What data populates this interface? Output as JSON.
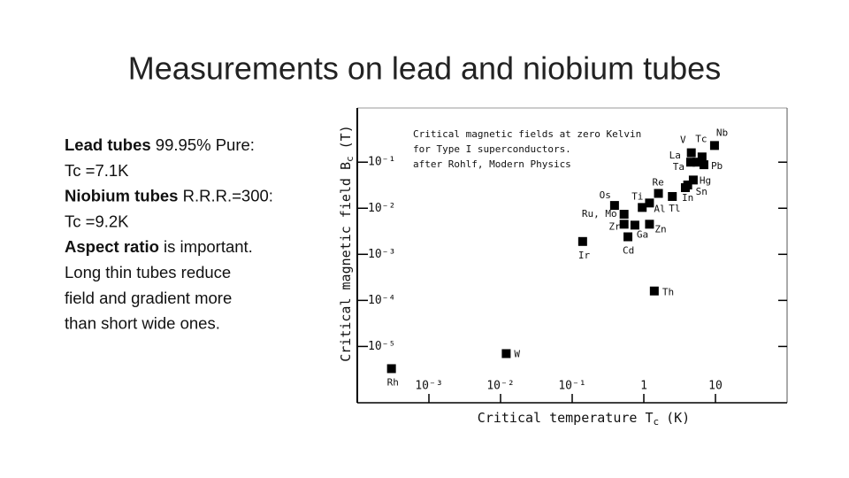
{
  "slide": {
    "title": "Measurements on lead and niobium tubes",
    "body": [
      [
        {
          "text": "Lead tubes",
          "bold": true
        },
        {
          "text": " 99.95% Pure:",
          "bold": false
        }
      ],
      [
        {
          "text": "Tc =7.1K",
          "bold": false
        }
      ],
      [
        {
          "text": "Niobium tubes",
          "bold": true
        },
        {
          "text": " R.R.R.=300:",
          "bold": false
        }
      ],
      [
        {
          "text": "Tc =9.2K",
          "bold": false
        }
      ],
      [
        {
          "text": "Aspect ratio",
          "bold": true
        },
        {
          "text": " is important.",
          "bold": false
        }
      ],
      [
        {
          "text": "Long thin tubes reduce",
          "bold": false
        }
      ],
      [
        {
          "text": "field and gradient more",
          "bold": false
        }
      ],
      [
        {
          "text": "than short wide ones.",
          "bold": false
        }
      ]
    ]
  },
  "chart_data": {
    "type": "scatter",
    "annotation": [
      "Critical magnetic fields at zero Kelvin",
      "for Type I superconductors.",
      "after Rohlf, Modern Physics"
    ],
    "x_label": {
      "text": "Critical temperature T",
      "sub": "c",
      "unit": "(K)"
    },
    "y_label": {
      "text": "Critical magnetic field B",
      "sub": "c",
      "unit": "(T)"
    },
    "xlog": true,
    "ylog": true,
    "color": "#000000",
    "labels": [
      "Rh",
      "W",
      "Ir",
      "Cd",
      "Zr",
      "Ru, Mo",
      "Os",
      "Ga",
      "Zn",
      "Ti",
      "Al",
      "Re",
      "Tl",
      "In",
      "Sn",
      "Hg",
      "V",
      "Tc",
      "Nb",
      "La",
      "Ta",
      "Pb",
      "Th"
    ],
    "x": [
      0.0003,
      0.012,
      0.14,
      0.6,
      0.53,
      0.53,
      0.39,
      0.75,
      1.2,
      0.95,
      1.2,
      1.6,
      2.5,
      3.8,
      4.1,
      4.9,
      4.6,
      6.5,
      9.7,
      4.5,
      5.5,
      6.9,
      1.4
    ],
    "values": [
      3.3e-06,
      7e-06,
      0.0019,
      0.0024,
      0.0045,
      0.0074,
      0.0115,
      0.0043,
      0.0045,
      0.0104,
      0.013,
      0.021,
      0.018,
      0.028,
      0.032,
      0.041,
      0.16,
      0.13,
      0.23,
      0.1,
      0.1,
      0.088,
      0.00016
    ],
    "xlim": [
      0.0001,
      100
    ],
    "ylim": [
      6e-07,
      1.5
    ],
    "xticks": [
      {
        "value": 0.001,
        "label": "10⁻³"
      },
      {
        "value": 0.01,
        "label": "10⁻²"
      },
      {
        "value": 0.1,
        "label": "10⁻¹"
      },
      1,
      10
    ],
    "yticks": [
      {
        "value": 0.1,
        "label": "10⁻¹"
      },
      {
        "value": 0.01,
        "label": "10⁻²"
      },
      {
        "value": 0.001,
        "label": "10⁻³"
      },
      {
        "value": 0.0001,
        "label": "10⁻⁴"
      },
      {
        "value": 1e-05,
        "label": "10⁻⁵"
      }
    ]
  }
}
